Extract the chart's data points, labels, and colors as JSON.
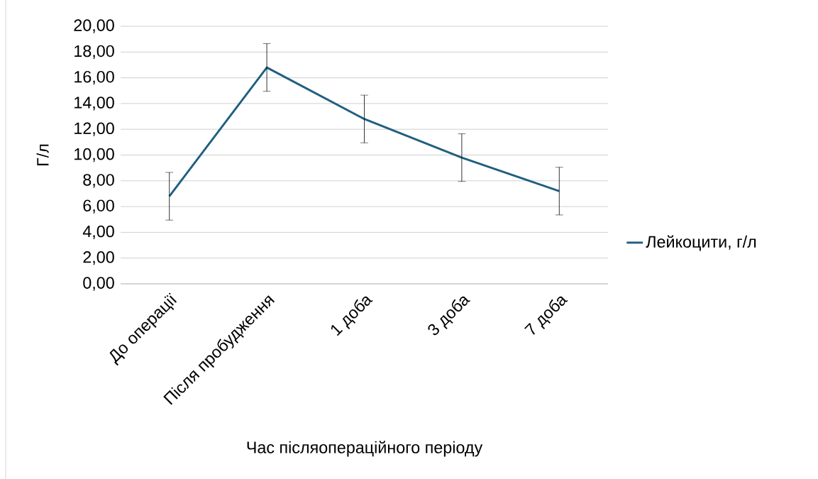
{
  "chart_data": {
    "type": "line",
    "xlabel": "Час післяопераційного періоду",
    "ylabel": "Г/л",
    "categories": [
      "До операції",
      "Після пробудження",
      "1 доба",
      "3 доба",
      "7 доба"
    ],
    "series": [
      {
        "name": "Лейкоцити, г/л",
        "color": "#1f5f80",
        "values": [
          6.8,
          16.8,
          12.8,
          9.8,
          7.2
        ],
        "errors": [
          1.85,
          1.85,
          1.85,
          1.85,
          1.85
        ]
      }
    ],
    "ylim": [
      0,
      20
    ],
    "yticks": [
      {
        "value": 0,
        "label": "0,00"
      },
      {
        "value": 2,
        "label": "2,00"
      },
      {
        "value": 4,
        "label": "4,00"
      },
      {
        "value": 6,
        "label": "6,00"
      },
      {
        "value": 8,
        "label": "8,00"
      },
      {
        "value": 10,
        "label": "10,00"
      },
      {
        "value": 12,
        "label": "12,00"
      },
      {
        "value": 14,
        "label": "14,00"
      },
      {
        "value": 16,
        "label": "16,00"
      },
      {
        "value": 18,
        "label": "18,00"
      },
      {
        "value": 20,
        "label": "20,00"
      }
    ],
    "grid": "y",
    "legend": "right"
  }
}
